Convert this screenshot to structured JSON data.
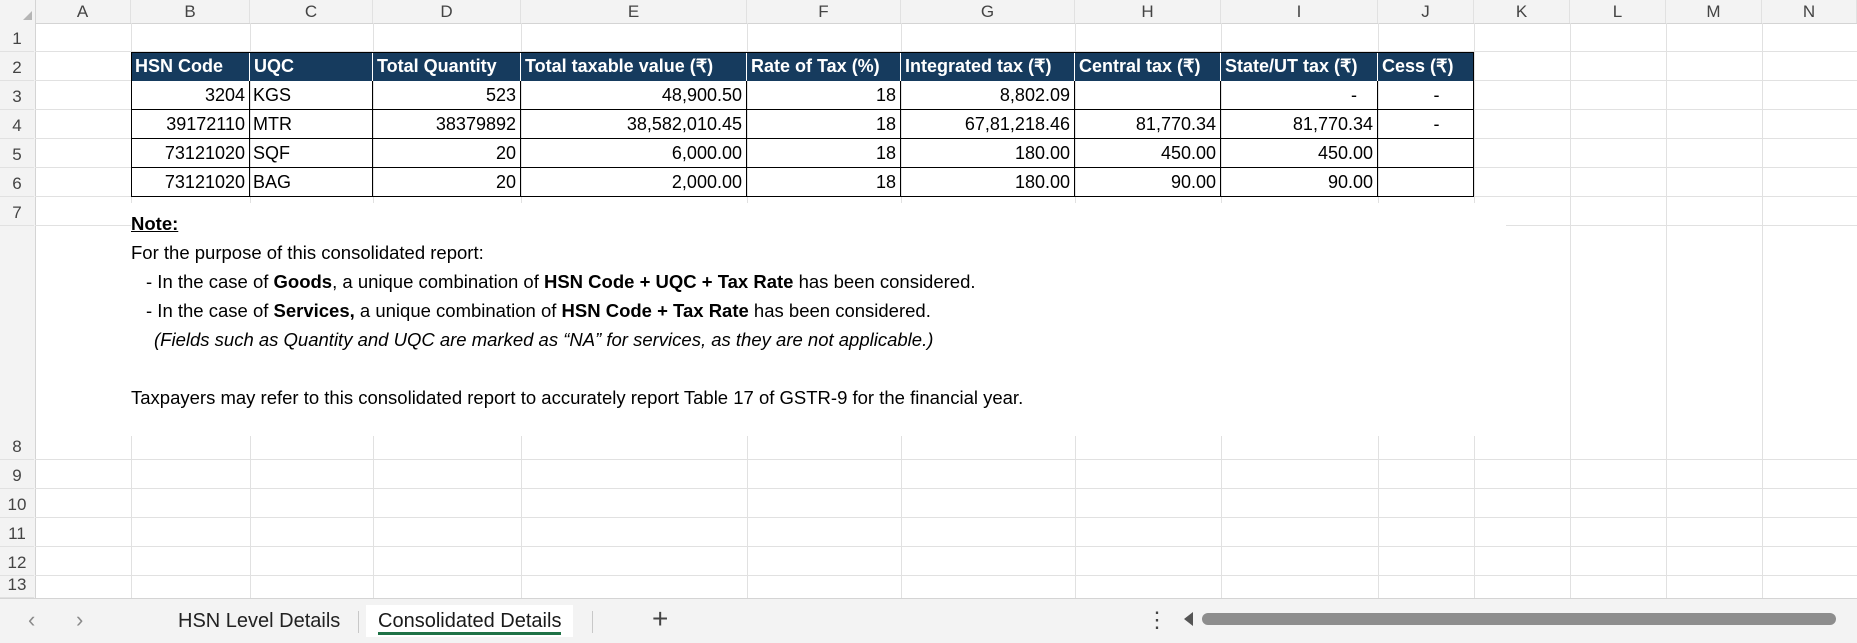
{
  "columns": [
    "A",
    "B",
    "C",
    "D",
    "E",
    "F",
    "G",
    "H",
    "I",
    "J",
    "K",
    "L",
    "M",
    "N"
  ],
  "rows": [
    "1",
    "2",
    "3",
    "4",
    "5",
    "6",
    "7",
    "8",
    "9",
    "10",
    "11",
    "12",
    "13"
  ],
  "table": {
    "headers": [
      "HSN Code",
      "UQC",
      "Total Quantity",
      "Total taxable value (₹)",
      "Rate of Tax (%)",
      "Integrated tax (₹)",
      "Central tax (₹)",
      "State/UT tax (₹)",
      "Cess (₹)"
    ],
    "rows": [
      [
        "3204",
        "KGS",
        "523",
        "48,900.50",
        "18",
        "8,802.09",
        "",
        "-",
        "-"
      ],
      [
        "39172110",
        "MTR",
        "38379892",
        "38,582,010.45",
        "18",
        "67,81,218.46",
        "81,770.34",
        "81,770.34",
        "-"
      ],
      [
        "73121020",
        "SQF",
        "20",
        "6,000.00",
        "18",
        "180.00",
        "450.00",
        "450.00",
        ""
      ],
      [
        "73121020",
        "BAG",
        "20",
        "2,000.00",
        "18",
        "180.00",
        "90.00",
        "90.00",
        ""
      ]
    ]
  },
  "note": {
    "heading": "Note:",
    "intro": "For the purpose of this consolidated report:",
    "goods": {
      "pre": "- In the case of ",
      "bold1": "Goods",
      "mid": ", a unique combination of ",
      "bold2": "HSN Code + UQC + Tax Rate",
      "post": " has been considered."
    },
    "services": {
      "pre": "- In the case of ",
      "bold1": "Services,",
      "mid": " a unique combination of ",
      "bold2": "HSN Code + Tax Rate",
      "post": " has been considered."
    },
    "italic": "(Fields such as Quantity and UQC are marked as “NA” for services, as they are not applicable.)",
    "footer": "Taxpayers may refer to this consolidated report to accurately report Table 17 of GSTR-9 for the financial year."
  },
  "sheets": {
    "tabs": [
      "HSN Level Details",
      "Consolidated Details"
    ],
    "active": "Consolidated Details"
  },
  "icons": {
    "nav_prev": "chevron-left-icon",
    "nav_next": "chevron-right-icon",
    "add_sheet": "plus-icon",
    "more": "more-vertical-icon"
  },
  "colors": {
    "header_bg": "#163b5e",
    "tab_accent": "#1e7145"
  }
}
